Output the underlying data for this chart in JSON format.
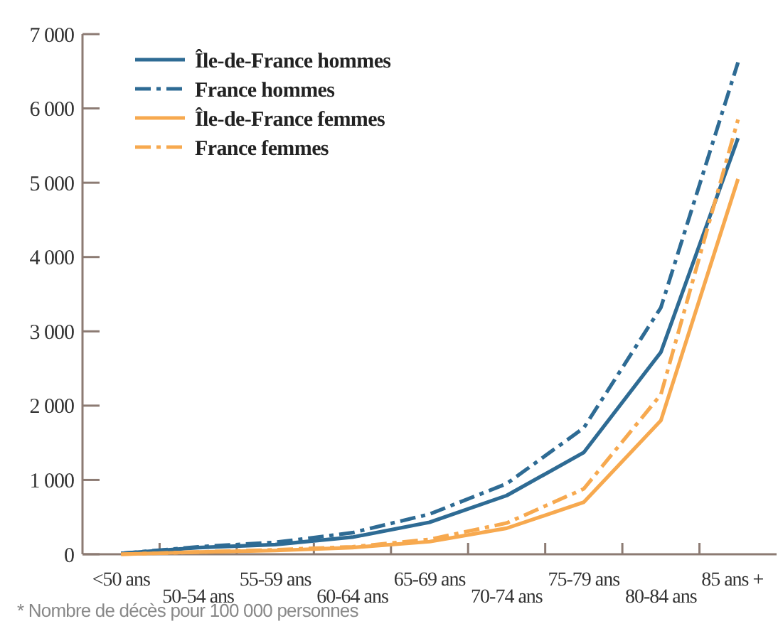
{
  "chart_data": {
    "type": "line",
    "categories": [
      "<50 ans",
      "50-54 ans",
      "55-59 ans",
      "60-64 ans",
      "65-69 ans",
      "70-74 ans",
      "75-79 ans",
      "80-84 ans",
      "85 ans +"
    ],
    "series": [
      {
        "name": "Île-de-France hommes",
        "color": "#2e6b94",
        "line_style": "solid",
        "values": [
          10,
          90,
          130,
          230,
          430,
          790,
          1370,
          2720,
          5600
        ]
      },
      {
        "name": "France hommes",
        "color": "#2e6b94",
        "line_style": "dashed",
        "values": [
          10,
          100,
          160,
          290,
          540,
          950,
          1700,
          3320,
          6620
        ]
      },
      {
        "name": "Île-de-France femmes",
        "color": "#f7a94f",
        "line_style": "solid",
        "values": [
          0,
          30,
          50,
          90,
          170,
          350,
          700,
          1800,
          5050
        ]
      },
      {
        "name": "France femmes",
        "color": "#f7a94f",
        "line_style": "dashed",
        "values": [
          0,
          30,
          60,
          100,
          200,
          420,
          880,
          2150,
          5850
        ]
      }
    ],
    "ylim": [
      0,
      7000
    ],
    "yticks": [
      {
        "value": 0,
        "label": "0"
      },
      {
        "value": 1000,
        "label": "1 000"
      },
      {
        "value": 2000,
        "label": "2 000"
      },
      {
        "value": 3000,
        "label": "3 000"
      },
      {
        "value": 4000,
        "label": "4 000"
      },
      {
        "value": 5000,
        "label": "5 000"
      },
      {
        "value": 6000,
        "label": "6 000"
      },
      {
        "value": 7000,
        "label": "7 000"
      }
    ],
    "grid": false,
    "legend": "top left",
    "marker": "none",
    "annotations": [
      "* Nombre de décès pour 100 000 personnes"
    ]
  }
}
